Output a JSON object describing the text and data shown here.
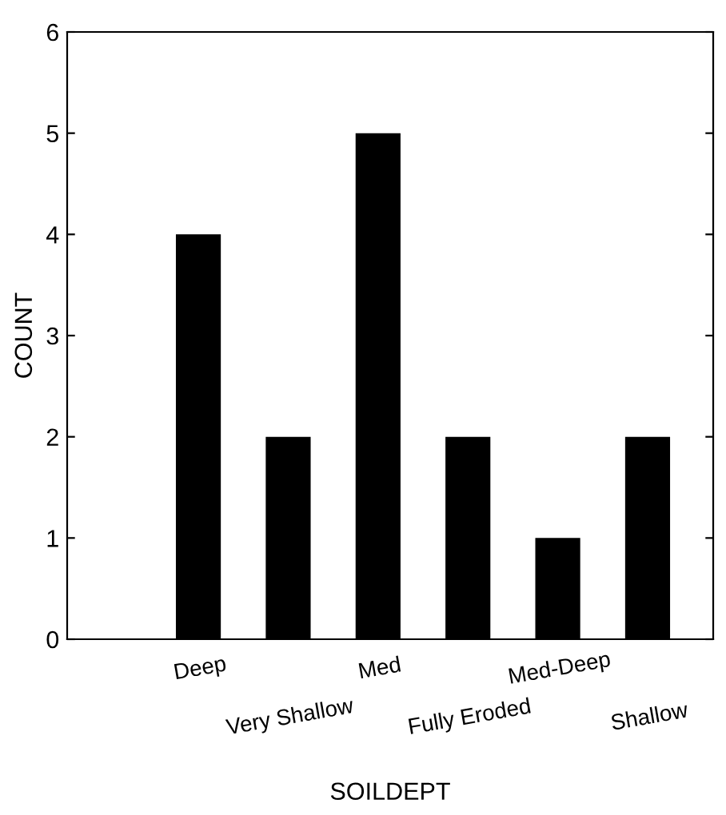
{
  "chart_data": {
    "type": "bar",
    "xlabel": "SOILDEPT",
    "ylabel": "COUNT",
    "categories": [
      "Deep",
      "Very Shallow",
      "Med",
      "Fully Eroded",
      "Med-Deep",
      "Shallow"
    ],
    "values": [
      4,
      2,
      5,
      2,
      1,
      2
    ],
    "color": "#000000",
    "ylim": [
      0,
      6
    ],
    "yticks": [
      0,
      1,
      2,
      3,
      4,
      5,
      6
    ],
    "grid": false,
    "legend": false
  }
}
